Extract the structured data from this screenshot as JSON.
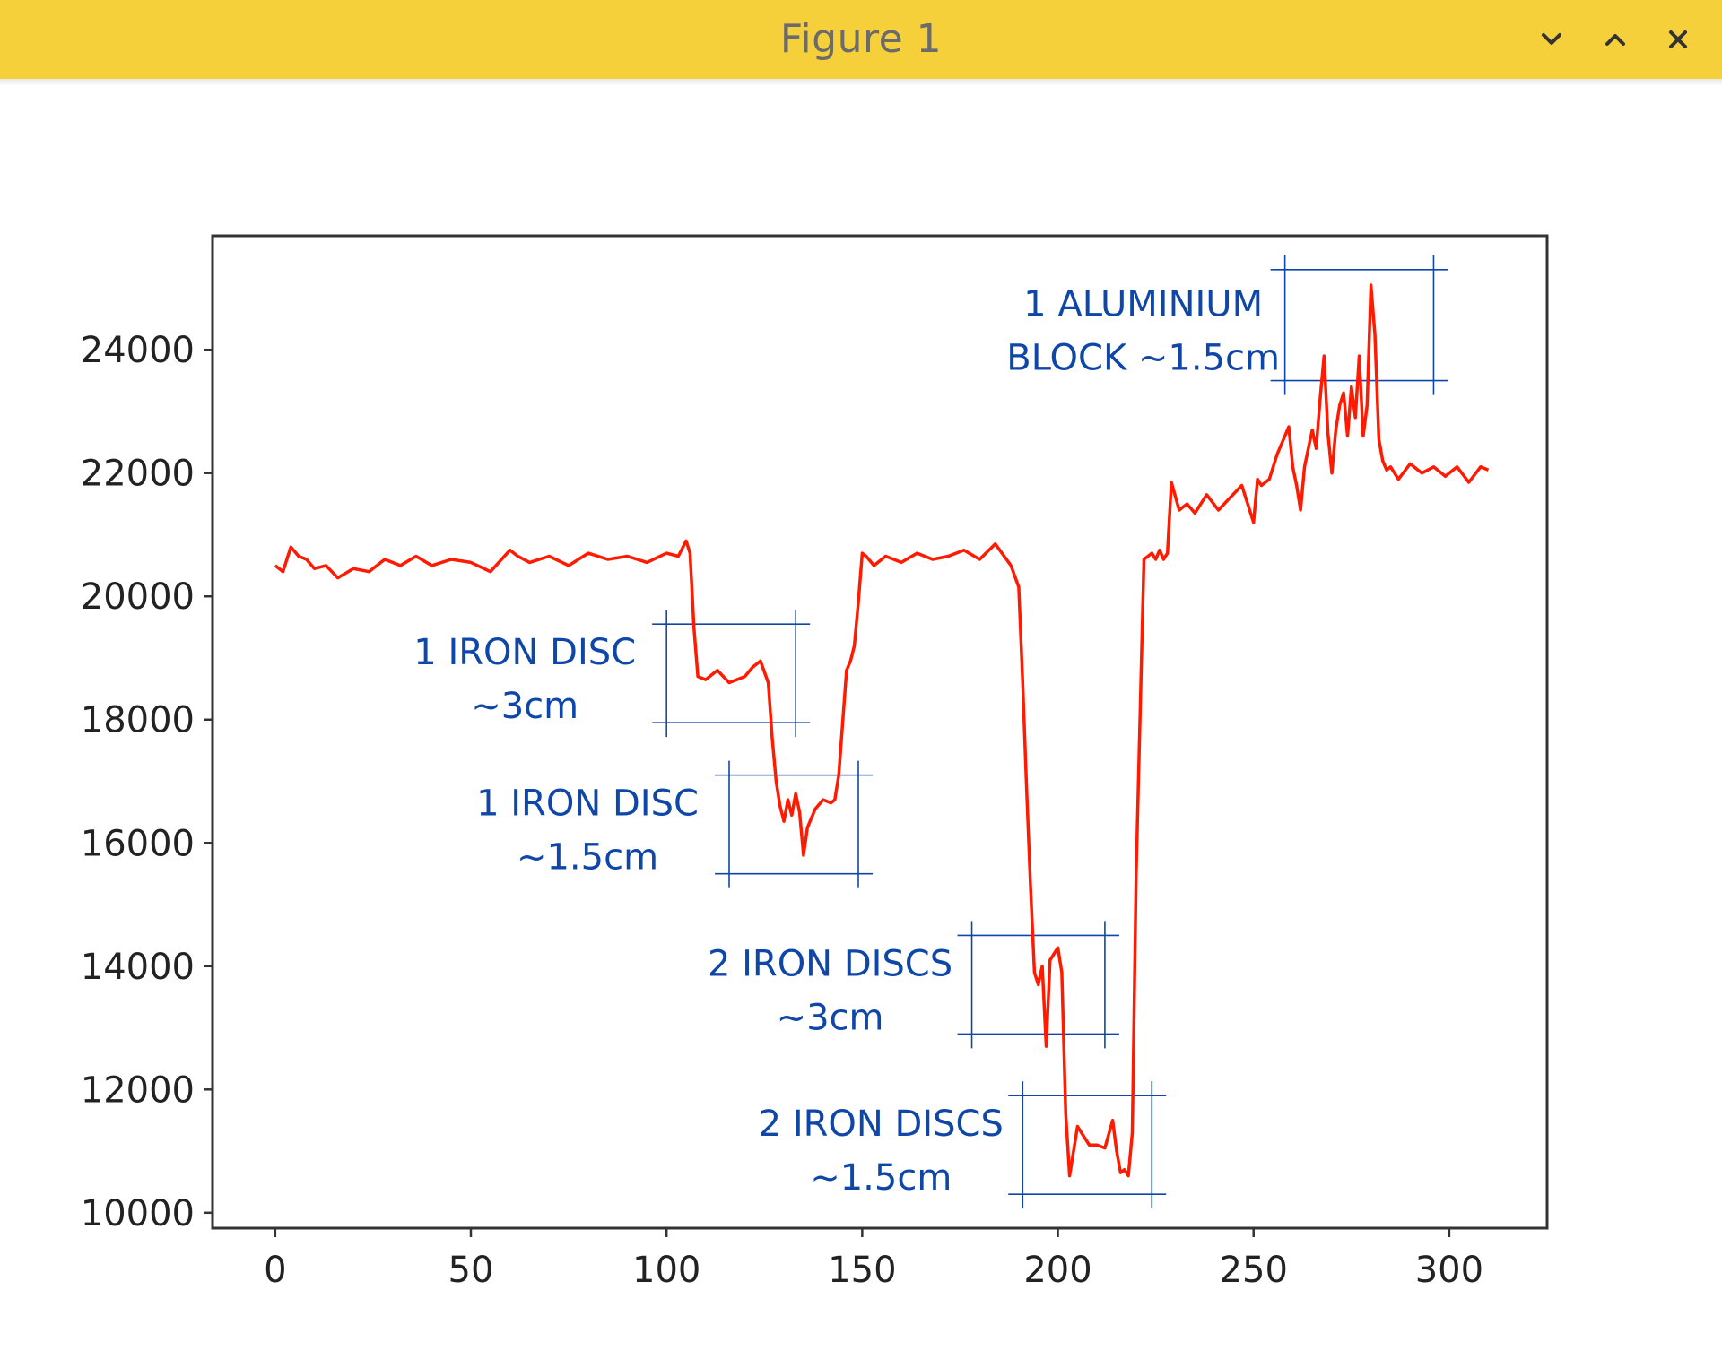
{
  "window": {
    "title": "Figure 1",
    "controls": {
      "minimize_icon": "chevron-down-icon",
      "maximize_icon": "chevron-up-icon",
      "close_icon": "close-icon"
    }
  },
  "colors": {
    "titlebar": "#f5d03a",
    "line": "#ff1a00",
    "annotation": "#0f47a8",
    "axes": "#333333"
  },
  "chart_data": {
    "type": "line",
    "title": "",
    "xlabel": "",
    "ylabel": "",
    "xlim": [
      -16,
      325
    ],
    "ylim": [
      9750,
      25850
    ],
    "xticks": [
      0,
      50,
      100,
      150,
      200,
      250,
      300
    ],
    "yticks": [
      10000,
      12000,
      14000,
      16000,
      18000,
      20000,
      22000,
      24000
    ],
    "grid": false,
    "series": [
      {
        "x": [
          0,
          2,
          4,
          6,
          8,
          10,
          13,
          16,
          20,
          24,
          28,
          32,
          36,
          40,
          45,
          50,
          55,
          60,
          62,
          65,
          70,
          75,
          80,
          85,
          90,
          95,
          100,
          103,
          105,
          106,
          107,
          108,
          110,
          113,
          116,
          120,
          122,
          124,
          126,
          127,
          128,
          129,
          130,
          131,
          132,
          133,
          134,
          135,
          136,
          138,
          140,
          142,
          143,
          144,
          146,
          147,
          148,
          149,
          150,
          151,
          153,
          156,
          160,
          164,
          168,
          172,
          176,
          180,
          184,
          188,
          190,
          191,
          192,
          193,
          194,
          195,
          196,
          197,
          198,
          199,
          200,
          201,
          202,
          203,
          204,
          205,
          206,
          208,
          210,
          212,
          214,
          215,
          216,
          217,
          218,
          219,
          220,
          222,
          224,
          225,
          226,
          227,
          228,
          229,
          231,
          233,
          235,
          238,
          241,
          244,
          247,
          250,
          251,
          252,
          254,
          256,
          258,
          259,
          260,
          261,
          262,
          263,
          264,
          265,
          266,
          267,
          268,
          269,
          270,
          271,
          272,
          273,
          274,
          275,
          276,
          277,
          278,
          279,
          280,
          281,
          282,
          283,
          284,
          285,
          287,
          290,
          293,
          296,
          299,
          302,
          305,
          308,
          310
        ],
        "y": [
          20500,
          20400,
          20800,
          20650,
          20600,
          20450,
          20500,
          20300,
          20450,
          20400,
          20600,
          20500,
          20650,
          20500,
          20600,
          20550,
          20400,
          20750,
          20650,
          20550,
          20650,
          20500,
          20700,
          20600,
          20650,
          20550,
          20700,
          20650,
          20900,
          20700,
          19500,
          18700,
          18650,
          18800,
          18600,
          18700,
          18850,
          18950,
          18600,
          17700,
          17000,
          16600,
          16350,
          16700,
          16450,
          16800,
          16500,
          15800,
          16250,
          16550,
          16700,
          16650,
          16700,
          17100,
          18800,
          18950,
          19200,
          19900,
          20700,
          20650,
          20500,
          20650,
          20550,
          20700,
          20600,
          20650,
          20750,
          20600,
          20850,
          20500,
          20150,
          18600,
          16900,
          15300,
          13900,
          13700,
          14000,
          12700,
          14100,
          14200,
          14300,
          13900,
          11600,
          10600,
          11000,
          11400,
          11300,
          11100,
          11100,
          11050,
          11500,
          11000,
          10650,
          10700,
          10600,
          11300,
          15500,
          20600,
          20700,
          20600,
          20750,
          20600,
          20700,
          21850,
          21400,
          21500,
          21350,
          21650,
          21400,
          21600,
          21800,
          21200,
          21900,
          21800,
          21900,
          22300,
          22600,
          22750,
          22100,
          21800,
          21400,
          22100,
          22400,
          22700,
          22400,
          23200,
          23900,
          22650,
          22000,
          22700,
          23100,
          23300,
          22600,
          23400,
          22900,
          23900,
          22600,
          23100,
          25050,
          24250,
          22550,
          22200,
          22050,
          22100,
          21900,
          22150,
          22000,
          22100,
          21950,
          22100,
          21850,
          22100,
          22050
        ]
      }
    ],
    "annotations": [
      {
        "text_lines": [
          "1 IRON DISC",
          "~3cm"
        ],
        "box": {
          "x": [
            100,
            133
          ],
          "y": [
            17950,
            19550
          ]
        }
      },
      {
        "text_lines": [
          "1 IRON DISC",
          "~1.5cm"
        ],
        "box": {
          "x": [
            116,
            149
          ],
          "y": [
            15500,
            17100
          ]
        }
      },
      {
        "text_lines": [
          "2 IRON DISCS",
          "~3cm"
        ],
        "box": {
          "x": [
            178,
            212
          ],
          "y": [
            12900,
            14500
          ]
        }
      },
      {
        "text_lines": [
          "2 IRON DISCS",
          "~1.5cm"
        ],
        "box": {
          "x": [
            191,
            224
          ],
          "y": [
            10300,
            11900
          ]
        }
      },
      {
        "text_lines": [
          "1 ALUMINIUM",
          "BLOCK ~1.5cm"
        ],
        "box": {
          "x": [
            258,
            296
          ],
          "y": [
            23500,
            25300
          ]
        }
      }
    ]
  }
}
